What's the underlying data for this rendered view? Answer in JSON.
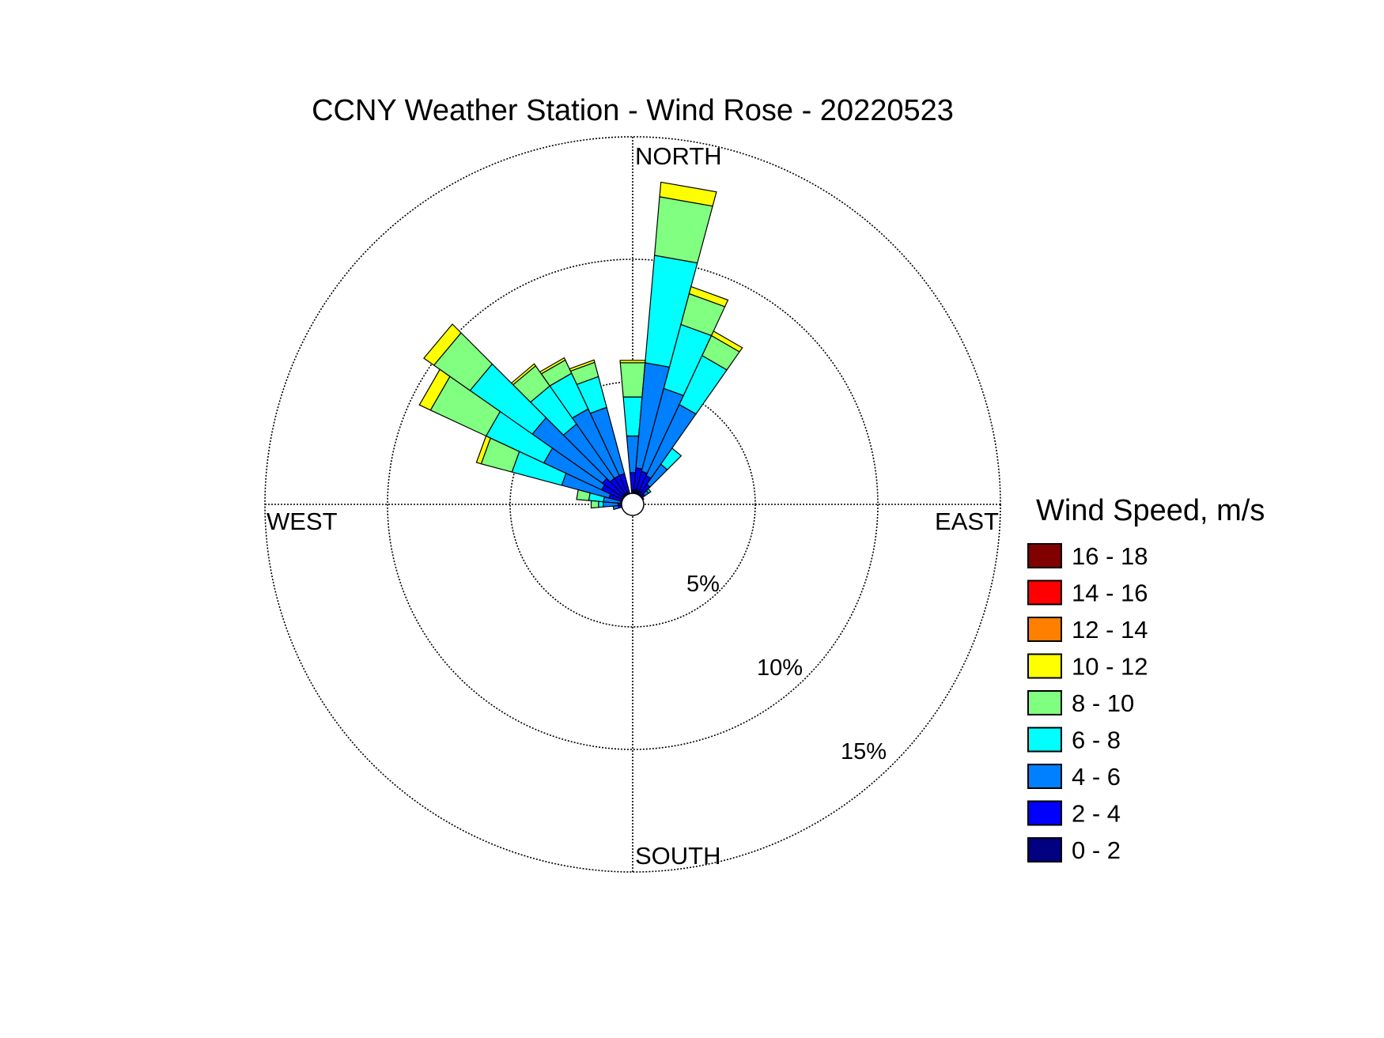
{
  "chart_data": {
    "type": "wind-rose",
    "title": "CCNY Weather Station - Wind Rose - 20220523",
    "direction_labels": {
      "north": "NORTH",
      "east": "EAST",
      "south": "SOUTH",
      "west": "WEST"
    },
    "ring_values": [
      5,
      10,
      15
    ],
    "ring_labels": [
      "5%",
      "10%",
      "15%"
    ],
    "radial_max": 15,
    "legend": {
      "title": "Wind Speed, m/s",
      "bins": [
        {
          "label": "16 - 18",
          "color": "#800000"
        },
        {
          "label": "14 - 16",
          "color": "#ff0000"
        },
        {
          "label": "12 - 14",
          "color": "#ff8000"
        },
        {
          "label": "10 - 12",
          "color": "#ffff00"
        },
        {
          "label": "8 - 10",
          "color": "#80ff80"
        },
        {
          "label": "6 - 8",
          "color": "#00ffff"
        },
        {
          "label": "4 - 6",
          "color": "#0080ff"
        },
        {
          "label": "2 - 4",
          "color": "#0000ff"
        },
        {
          "label": "0 - 2",
          "color": "#000080"
        }
      ]
    },
    "speed_bins": [
      "0 - 2",
      "2 - 4",
      "4 - 6",
      "6 - 8",
      "8 - 10",
      "10 - 12",
      "12 - 14",
      "14 - 16",
      "16 - 18"
    ],
    "bin_colors": [
      "#000080",
      "#0000ff",
      "#0080ff",
      "#00ffff",
      "#80ff80",
      "#ffff00",
      "#ff8000",
      "#ff0000",
      "#800000"
    ],
    "sector_width_deg": 10,
    "sectors": [
      {
        "direction": 0,
        "cumulative": [
          0.6,
          1.3,
          2.8,
          4.4,
          5.8,
          5.9
        ]
      },
      {
        "direction": 10,
        "cumulative": [
          0.6,
          1.5,
          5.8,
          10.2,
          12.6,
          13.2
        ]
      },
      {
        "direction": 20,
        "cumulative": [
          0.6,
          1.4,
          4.9,
          7.6,
          8.9,
          9.2
        ]
      },
      {
        "direction": 30,
        "cumulative": [
          0.6,
          1.3,
          4.5,
          6.7,
          7.6,
          7.8
        ]
      },
      {
        "direction": 40,
        "cumulative": [
          0.5,
          1.0,
          2.0,
          2.8
        ]
      },
      {
        "direction": 50,
        "cumulative": [
          0.3,
          0.6,
          0.8,
          0.9
        ]
      },
      {
        "direction": 60,
        "cumulative": [
          0.3,
          0.5
        ]
      },
      {
        "direction": 340,
        "cumulative": [
          0.5,
          1.3,
          4.1,
          5.4,
          6.0,
          6.1
        ]
      },
      {
        "direction": 330,
        "cumulative": [
          0.5,
          1.3,
          4.3,
          5.9,
          6.5,
          6.6
        ]
      },
      {
        "direction": 320,
        "cumulative": [
          0.5,
          1.3,
          4.0,
          5.9,
          6.9,
          7.0
        ]
      },
      {
        "direction": 310,
        "cumulative": [
          0.5,
          1.5,
          5.0,
          8.1,
          9.9,
          10.4
        ]
      },
      {
        "direction": 300,
        "cumulative": [
          0.5,
          1.4,
          4.0,
          6.6,
          9.1,
          9.6
        ]
      },
      {
        "direction": 290,
        "cumulative": [
          0.4,
          1.0,
          3.0,
          5.1,
          6.4,
          6.6
        ]
      },
      {
        "direction": 280,
        "cumulative": [
          0.3,
          0.5,
          1.2,
          1.8,
          2.3
        ]
      },
      {
        "direction": 270,
        "cumulative": [
          0.3,
          0.6,
          1.2,
          1.4,
          1.7
        ]
      },
      {
        "direction": 260,
        "cumulative": [
          0.3,
          0.6,
          0.8
        ]
      },
      {
        "direction": 250,
        "cumulative": [
          0.3,
          0.4
        ]
      },
      {
        "direction": 240,
        "cumulative": [
          0.25,
          0.3
        ]
      },
      {
        "direction": 180,
        "cumulative": [
          0.2,
          0.25
        ]
      },
      {
        "direction": 190,
        "cumulative": [
          0.2,
          0.25
        ]
      },
      {
        "direction": 200,
        "cumulative": [
          0.2,
          0.25
        ]
      },
      {
        "direction": 210,
        "cumulative": [
          0.2,
          0.25
        ]
      },
      {
        "direction": 220,
        "cumulative": [
          0.2,
          0.3
        ]
      },
      {
        "direction": 230,
        "cumulative": [
          0.2,
          0.3
        ]
      },
      {
        "direction": 120,
        "cumulative": [
          0.2,
          0.25
        ]
      },
      {
        "direction": 130,
        "cumulative": [
          0.2,
          0.25
        ]
      },
      {
        "direction": 140,
        "cumulative": [
          0.2,
          0.25
        ]
      },
      {
        "direction": 150,
        "cumulative": [
          0.2,
          0.25
        ]
      },
      {
        "direction": 160,
        "cumulative": [
          0.2,
          0.25
        ]
      },
      {
        "direction": 170,
        "cumulative": [
          0.2,
          0.25
        ]
      },
      {
        "direction": 70,
        "cumulative": [
          0.25,
          0.3
        ]
      },
      {
        "direction": 80,
        "cumulative": [
          0.25,
          0.3
        ]
      },
      {
        "direction": 90,
        "cumulative": [
          0.2,
          0.25
        ]
      },
      {
        "direction": 100,
        "cumulative": [
          0.2,
          0.25
        ]
      },
      {
        "direction": 110,
        "cumulative": [
          0.2,
          0.25
        ]
      }
    ]
  }
}
